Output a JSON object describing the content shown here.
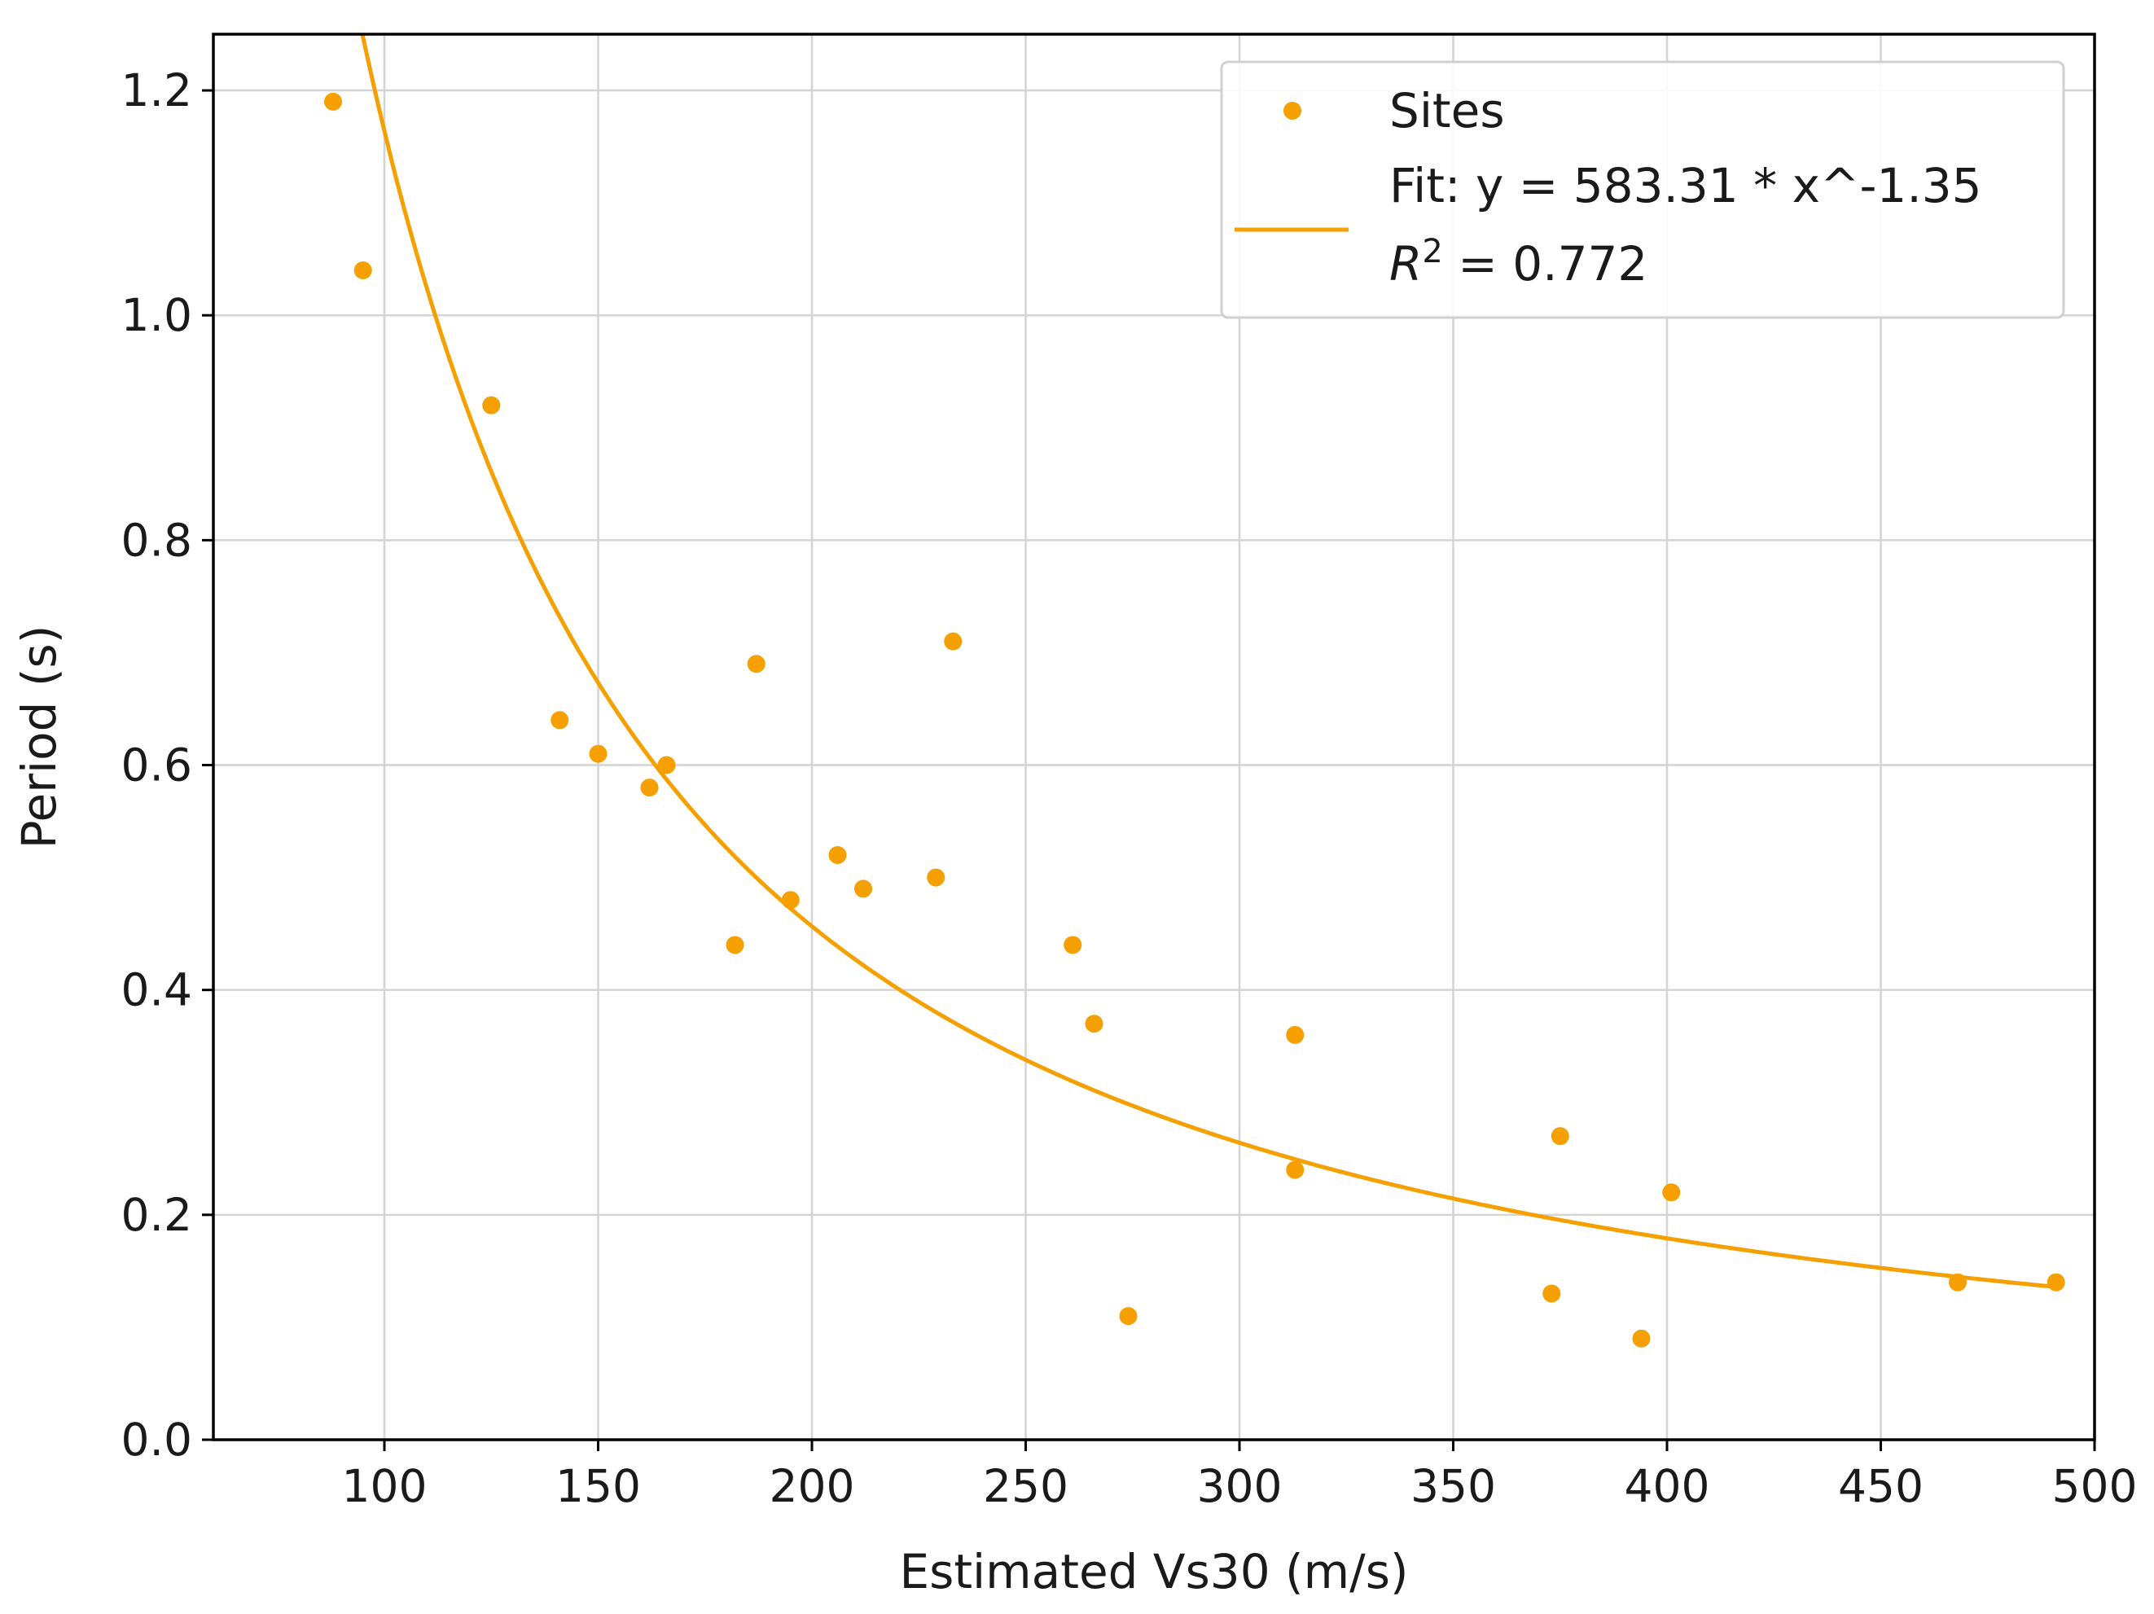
{
  "chart_data": {
    "type": "scatter",
    "xlabel": "Estimated Vs30 (m/s)",
    "ylabel": "Period (s)",
    "xlim": [
      60,
      500
    ],
    "ylim": [
      0.0,
      1.25
    ],
    "x_ticks": [
      100,
      150,
      200,
      250,
      300,
      350,
      400,
      450,
      500
    ],
    "y_ticks": [
      0.0,
      0.2,
      0.4,
      0.6,
      0.8,
      1.0,
      1.2
    ],
    "x_tick_labels": [
      "100",
      "150",
      "200",
      "250",
      "300",
      "350",
      "400",
      "450",
      "500"
    ],
    "y_tick_labels": [
      "0.0",
      "0.2",
      "0.4",
      "0.6",
      "0.8",
      "1.0",
      "1.2"
    ],
    "grid": true,
    "legend_position": "top-right",
    "color": "#F5A000",
    "series": [
      {
        "name": "Sites",
        "kind": "scatter",
        "x": [
          88,
          95,
          125,
          141,
          150,
          162,
          166,
          182,
          187,
          195,
          206,
          212,
          229,
          233,
          261,
          266,
          274,
          313,
          313,
          373,
          375,
          394,
          401,
          468,
          491
        ],
        "y": [
          1.19,
          1.04,
          0.92,
          0.64,
          0.61,
          0.58,
          0.6,
          0.44,
          0.69,
          0.48,
          0.52,
          0.49,
          0.5,
          0.71,
          0.44,
          0.37,
          0.11,
          0.36,
          0.24,
          0.13,
          0.27,
          0.09,
          0.22,
          0.14,
          0.14
        ]
      },
      {
        "name": "Fit: y = 583.31 * x^-1.35",
        "kind": "line",
        "function": "power",
        "coefficient": 583.31,
        "exponent": -1.35,
        "r2_prefix": "R",
        "r2_superscript": "2",
        "r2_value": " = 0.772"
      }
    ]
  }
}
